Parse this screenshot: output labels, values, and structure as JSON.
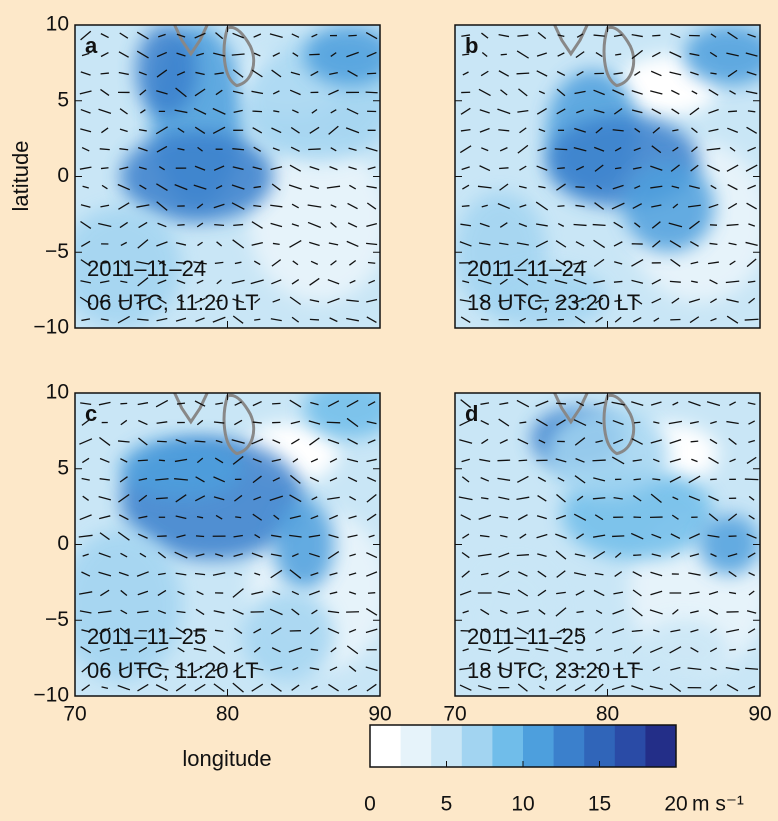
{
  "panels": [
    {
      "label": "a",
      "date": "2011–11–24",
      "time": "06 UTC, 11:20 LT"
    },
    {
      "label": "b",
      "date": "2011–11–24",
      "time": "18 UTC, 23:20 LT"
    },
    {
      "label": "c",
      "date": "2011–11–25",
      "time": "06 UTC, 11:20 LT"
    },
    {
      "label": "d",
      "date": "2011–11–25",
      "time": "18 UTC, 23:20 LT"
    }
  ],
  "axes": {
    "xlabel": "longitude",
    "ylabel": "latitude",
    "xlim": [
      70,
      90
    ],
    "ylim": [
      -10,
      10
    ],
    "xticks": [
      70,
      80,
      90
    ],
    "yticks": [
      10,
      5,
      0,
      {
        "value": -5,
        "label": "−5"
      },
      {
        "value": -10,
        "label": "−10"
      }
    ]
  },
  "colorbar": {
    "lim": [
      0,
      20
    ],
    "ticks": [
      0,
      5,
      10,
      15,
      20
    ],
    "unit": "m s⁻¹",
    "colors": [
      "#ffffff",
      "#e6f3fa",
      "#c9e6f6",
      "#a2d4f1",
      "#70bdea",
      "#4d9fdd",
      "#3b80cc",
      "#3065b9",
      "#2a4ba6",
      "#232e88"
    ]
  }
}
